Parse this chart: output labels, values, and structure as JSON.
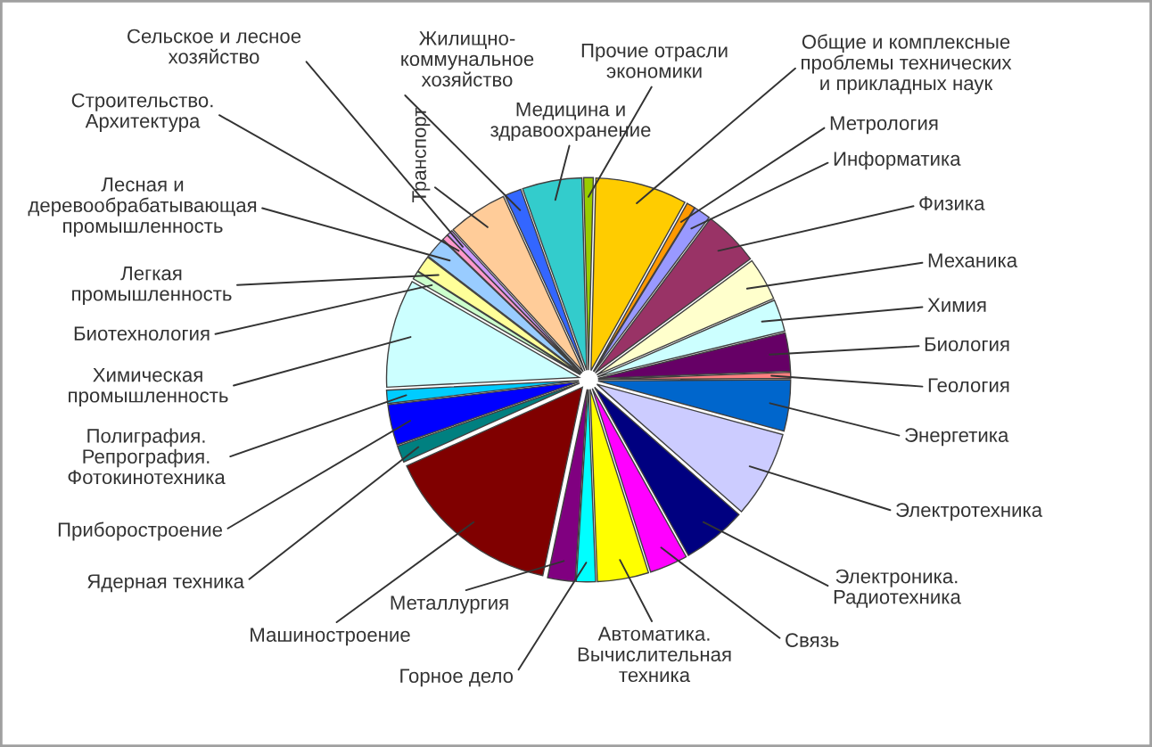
{
  "chart_data": {
    "type": "pie",
    "categories": [
      "Прочие отрасли\nэкономики",
      "Общие и комплексные\nпроблемы технических\nи прикладных наук",
      "Метрология",
      "Информатика",
      "Физика",
      "Механика",
      "Химия",
      "Биология",
      "Геология",
      "Энергетика",
      "Электротехника",
      "Электроника.\nРадиотехника",
      "Связь",
      "Автоматика.\nВычислительная\nтехника",
      "Горное дело",
      "Металлургия",
      "Машиностроение",
      "Ядерная техника",
      "Приборостроение",
      "Полиграфия.\nРепрография.\nФотокинотехника",
      "Химическая\nпромышленность",
      "Биотехнология",
      "Легкая\nпромышленность",
      "Лесная и\nдеревообрабатывающая\nпромышленность",
      "Строительство.\nАрхитектура",
      "Сельское и лесное\nхозяйство",
      "Транспорт",
      "Жилищно-\nкоммунальное\nхозяйство",
      "Медицина и\nздравоохранение"
    ],
    "values": [
      0.8,
      7.7,
      0.7,
      1.4,
      4.7,
      3.6,
      2.7,
      3.2,
      0.5,
      4.3,
      7.3,
      5.4,
      3.2,
      4.3,
      1.6,
      2.3,
      15.0,
      1.4,
      3.4,
      1.1,
      9.1,
      0.7,
      1.4,
      1.8,
      0.5,
      0.5,
      5.0,
      1.4,
      5.0
    ],
    "colors": [
      "#99cc00",
      "#ffcc00",
      "#ff9900",
      "#9999ff",
      "#993366",
      "#ffffcc",
      "#ccffff",
      "#660066",
      "#ff8080",
      "#0066cc",
      "#ccccff",
      "#000080",
      "#ff00ff",
      "#ffff00",
      "#00ffff",
      "#800080",
      "#800000",
      "#008080",
      "#0000ff",
      "#00ccff",
      "#ccffff",
      "#ccffcc",
      "#ffff99",
      "#99ccff",
      "#ff99cc",
      "#cc99ff",
      "#ffcc99",
      "#3366ff",
      "#33cccc"
    ]
  }
}
